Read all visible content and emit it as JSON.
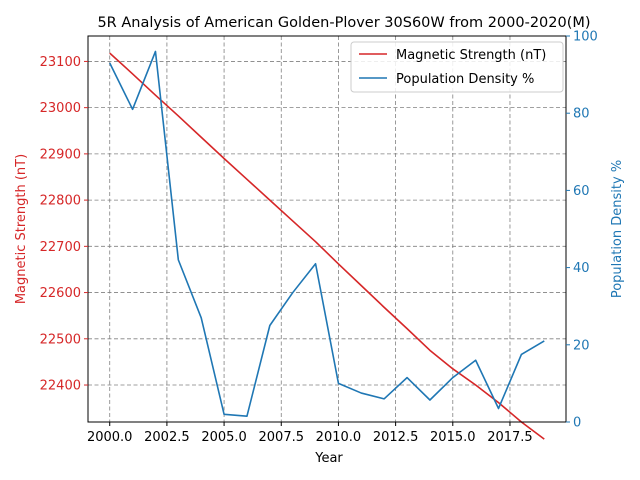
{
  "chart_data": {
    "type": "line",
    "title": "5R Analysis of American Golden-Plover 30S60W from 2000-2020(M)",
    "xlabel": "Year",
    "ylabel_left": "Magnetic Strength (nT)",
    "ylabel_right": "Population Density %",
    "x": [
      2000,
      2001,
      2002,
      2003,
      2004,
      2005,
      2006,
      2007,
      2008,
      2009,
      2010,
      2011,
      2012,
      2013,
      2014,
      2015,
      2016,
      2017,
      2018,
      2019
    ],
    "xlim": [
      1999.05,
      2019.95
    ],
    "x_ticks": [
      "2000.0",
      "2002.5",
      "2005.0",
      "2007.5",
      "2010.0",
      "2012.5",
      "2015.0",
      "2017.5"
    ],
    "x_tick_values": [
      2000,
      2002.5,
      2005,
      2007.5,
      2010,
      2012.5,
      2015,
      2017.5
    ],
    "ylim_left": [
      22320,
      23155
    ],
    "y_ticks_left": [
      22400,
      22500,
      22600,
      22700,
      22800,
      22900,
      23000,
      23100
    ],
    "ylim_right": [
      0,
      100
    ],
    "y_ticks_right": [
      0,
      20,
      40,
      60,
      80,
      100
    ],
    "grid": true,
    "legend_position": "top-right",
    "series": [
      {
        "name": "Magnetic Strength (nT)",
        "axis": "left",
        "color": "#d62728",
        "values": [
          23118,
          23073,
          23027,
          22982,
          22936,
          22890,
          22845,
          22800,
          22755,
          22710,
          22662,
          22615,
          22568,
          22522,
          22475,
          22435,
          22400,
          22362,
          22320,
          22283
        ]
      },
      {
        "name": "Population Density %",
        "axis": "right",
        "color": "#1f77b4",
        "values": [
          93,
          81,
          96,
          42,
          27,
          2,
          1.5,
          25,
          33.5,
          41,
          10,
          7.5,
          6,
          11.5,
          5.7,
          11.5,
          16,
          3.5,
          17.5,
          21
        ]
      }
    ],
    "colors": {
      "left_axis": "#d62728",
      "right_axis": "#1f77b4",
      "grid": "#808080"
    }
  }
}
